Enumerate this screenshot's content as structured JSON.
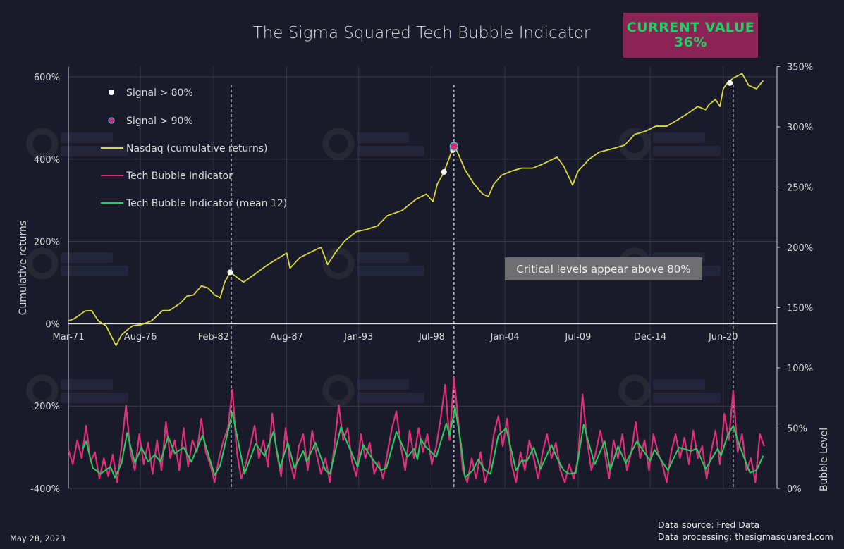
{
  "title": "The Sigma Squared Tech Bubble Indicator",
  "badge": {
    "label": "CURRENT VALUE",
    "value": "36%",
    "bg": "#8b2454",
    "fg": "#1fd065"
  },
  "annotation": "Critical levels appear above 80%",
  "footer": {
    "date": "May 28, 2023",
    "source": "Data source: Fred Data",
    "processing": "Data processing: thesigmasquared.com"
  },
  "watermark": "THE ΣIGMA SQUARED",
  "chart_data": {
    "type": "line",
    "title": "The Sigma Squared Tech Bubble Indicator",
    "ylabel_left": "Cumulative returns",
    "ylabel_right": "Bubble Level",
    "xlim": [
      "1971-03",
      "2024-05"
    ],
    "ylim_left": [
      -400,
      625
    ],
    "ylim_right": [
      0,
      350
    ],
    "grid": true,
    "legend_position": "top-left",
    "x_ticks": [
      "Mar-71",
      "Aug-76",
      "Feb-82",
      "Aug-87",
      "Jan-93",
      "Jul-98",
      "Jan-04",
      "Jul-09",
      "Dec-14",
      "Jun-20"
    ],
    "x_tick_dates": [
      "1971-03",
      "1976-08",
      "1982-02",
      "1987-08",
      "1993-01",
      "1998-07",
      "2004-01",
      "2009-07",
      "2014-12",
      "2020-06"
    ],
    "y_ticks_left": [
      {
        "v": 600,
        "label": "600%"
      },
      {
        "v": 400,
        "label": "400%"
      },
      {
        "v": 200,
        "label": "200%"
      },
      {
        "v": 0,
        "label": "0%"
      },
      {
        "v": -200,
        "label": "-200%"
      },
      {
        "v": -400,
        "label": "-400%"
      }
    ],
    "y_ticks_right": [
      {
        "v": 350,
        "label": "350%"
      },
      {
        "v": 300,
        "label": "300%"
      },
      {
        "v": 250,
        "label": "250%"
      },
      {
        "v": 200,
        "label": "200%"
      },
      {
        "v": 150,
        "label": "150%"
      },
      {
        "v": 100,
        "label": "100%"
      },
      {
        "v": 50,
        "label": "50%"
      },
      {
        "v": 0,
        "label": "0%"
      }
    ],
    "legend": [
      {
        "label": "Signal > 80%",
        "kind": "dot",
        "color": "#ffffff"
      },
      {
        "label": "Signal > 90%",
        "kind": "dot",
        "color": "#d6286e",
        "ring": "#4fc3d9"
      },
      {
        "label": "Nasdaq (cumulative returns)",
        "kind": "line",
        "color": "#d9d93a"
      },
      {
        "label": "Tech Bubble Indicator",
        "kind": "line",
        "color": "#e0307a"
      },
      {
        "label": "Tech Bubble Indicator (mean 12)",
        "kind": "line",
        "color": "#1fcf5f"
      }
    ],
    "series": [
      {
        "name": "Nasdaq (cumulative returns)",
        "axis": "left",
        "color": "#d9d93a",
        "points": [
          [
            "1971-03",
            7
          ],
          [
            "1971-08",
            12
          ],
          [
            "1972-01",
            21
          ],
          [
            "1972-06",
            31
          ],
          [
            "1972-12",
            32
          ],
          [
            "1973-06",
            7
          ],
          [
            "1974-01",
            -5
          ],
          [
            "1974-06",
            -32
          ],
          [
            "1974-10",
            -53
          ],
          [
            "1975-03",
            -27
          ],
          [
            "1975-08",
            -15
          ],
          [
            "1976-01",
            -5
          ],
          [
            "1976-09",
            -2
          ],
          [
            "1977-06",
            7
          ],
          [
            "1978-04",
            32
          ],
          [
            "1978-10",
            32
          ],
          [
            "1979-08",
            50
          ],
          [
            "1980-02",
            67
          ],
          [
            "1980-08",
            70
          ],
          [
            "1981-03",
            92
          ],
          [
            "1981-09",
            87
          ],
          [
            "1982-03",
            70
          ],
          [
            "1982-08",
            63
          ],
          [
            "1982-12",
            101
          ],
          [
            "1983-05",
            125
          ],
          [
            "1983-10",
            115
          ],
          [
            "1984-05",
            101
          ],
          [
            "1985-02",
            118
          ],
          [
            "1985-12",
            138
          ],
          [
            "1986-08",
            152
          ],
          [
            "1987-04",
            165
          ],
          [
            "1987-08",
            172
          ],
          [
            "1987-11",
            135
          ],
          [
            "1988-08",
            161
          ],
          [
            "1989-05",
            173
          ],
          [
            "1990-03",
            186
          ],
          [
            "1990-09",
            144
          ],
          [
            "1991-04",
            173
          ],
          [
            "1992-01",
            203
          ],
          [
            "1992-11",
            224
          ],
          [
            "1993-08",
            229
          ],
          [
            "1994-06",
            238
          ],
          [
            "1995-03",
            263
          ],
          [
            "1996-04",
            275
          ],
          [
            "1997-05",
            303
          ],
          [
            "1998-02",
            315
          ],
          [
            "1998-08",
            297
          ],
          [
            "1998-12",
            340
          ],
          [
            "1999-06",
            369
          ],
          [
            "1999-11",
            405
          ],
          [
            "2000-03",
            434
          ],
          [
            "2000-07",
            412
          ],
          [
            "2001-01",
            374
          ],
          [
            "2001-09",
            340
          ],
          [
            "2002-05",
            315
          ],
          [
            "2002-10",
            309
          ],
          [
            "2003-03",
            340
          ],
          [
            "2003-10",
            361
          ],
          [
            "2004-07",
            371
          ],
          [
            "2005-04",
            378
          ],
          [
            "2006-02",
            378
          ],
          [
            "2006-11",
            388
          ],
          [
            "2007-12",
            405
          ],
          [
            "2008-06",
            383
          ],
          [
            "2008-12",
            349
          ],
          [
            "2009-02",
            337
          ],
          [
            "2009-07",
            371
          ],
          [
            "2010-05",
            400
          ],
          [
            "2011-02",
            417
          ],
          [
            "2012-03",
            426
          ],
          [
            "2013-01",
            434
          ],
          [
            "2013-10",
            460
          ],
          [
            "2014-08",
            468
          ],
          [
            "2015-05",
            480
          ],
          [
            "2016-03",
            480
          ],
          [
            "2016-12",
            494
          ],
          [
            "2017-10",
            511
          ],
          [
            "2018-07",
            528
          ],
          [
            "2019-02",
            520
          ],
          [
            "2019-05",
            532
          ],
          [
            "2019-11",
            545
          ],
          [
            "2020-03",
            528
          ],
          [
            "2020-06",
            571
          ],
          [
            "2020-09",
            583
          ],
          [
            "2021-03",
            597
          ],
          [
            "2021-11",
            608
          ],
          [
            "2022-05",
            579
          ],
          [
            "2022-12",
            571
          ],
          [
            "2023-06",
            591
          ]
        ]
      },
      {
        "name": "Tech Bubble Indicator",
        "axis": "right",
        "color": "#e0307a",
        "start": "1971-03",
        "step_months": 4,
        "values": [
          32,
          20,
          40,
          25,
          52,
          22,
          30,
          8,
          25,
          10,
          28,
          5,
          35,
          69,
          30,
          15,
          45,
          20,
          38,
          12,
          40,
          15,
          55,
          25,
          40,
          15,
          50,
          18,
          40,
          30,
          58,
          30,
          20,
          5,
          25,
          40,
          50,
          82,
          30,
          8,
          20,
          35,
          52,
          25,
          40,
          18,
          62,
          30,
          10,
          50,
          22,
          8,
          35,
          45,
          15,
          48,
          28,
          12,
          25,
          5,
          35,
          69,
          40,
          50,
          22,
          10,
          45,
          25,
          38,
          12,
          22,
          8,
          30,
          50,
          64,
          35,
          15,
          48,
          25,
          50,
          30,
          45,
          20,
          35,
          58,
          86,
          40,
          92,
          55,
          15,
          5,
          25,
          8,
          30,
          5,
          18,
          45,
          60,
          35,
          58,
          20,
          5,
          30,
          15,
          40,
          25,
          8,
          30,
          45,
          25,
          38,
          15,
          5,
          20,
          8,
          25,
          78,
          40,
          15,
          30,
          48,
          30,
          8,
          40,
          25,
          45,
          15,
          30,
          55,
          25,
          40,
          15,
          45,
          30,
          20,
          5,
          30,
          45,
          25,
          42,
          20,
          48,
          25,
          35,
          8,
          30,
          48,
          20,
          62,
          40,
          81,
          30,
          45,
          15,
          25,
          5,
          45,
          35
        ]
      },
      {
        "name": "Tech Bubble Indicator (mean 12)",
        "axis": "right",
        "color": "#1fcf5f",
        "points": [
          [
            "1972-04",
            33
          ],
          [
            "1972-07",
            39
          ],
          [
            "1973-01",
            17
          ],
          [
            "1973-08",
            12
          ],
          [
            "1974-05",
            18
          ],
          [
            "1974-09",
            9
          ],
          [
            "1975-03",
            21
          ],
          [
            "1975-08",
            46
          ],
          [
            "1976-03",
            21
          ],
          [
            "1976-09",
            34
          ],
          [
            "1977-03",
            22
          ],
          [
            "1977-09",
            28
          ],
          [
            "1978-02",
            22
          ],
          [
            "1978-09",
            43
          ],
          [
            "1979-03",
            29
          ],
          [
            "1979-11",
            34
          ],
          [
            "1980-06",
            22
          ],
          [
            "1981-04",
            44
          ],
          [
            "1982-03",
            11
          ],
          [
            "1982-08",
            19
          ],
          [
            "1983-07",
            63
          ],
          [
            "1984-06",
            12
          ],
          [
            "1985-04",
            37
          ],
          [
            "1985-12",
            27
          ],
          [
            "1986-08",
            47
          ],
          [
            "1987-02",
            17
          ],
          [
            "1987-09",
            38
          ],
          [
            "1988-03",
            17
          ],
          [
            "1988-11",
            31
          ],
          [
            "1989-02",
            22
          ],
          [
            "1989-10",
            38
          ],
          [
            "1990-07",
            15
          ],
          [
            "1990-11",
            12
          ],
          [
            "1991-09",
            51
          ],
          [
            "1992-03",
            37
          ],
          [
            "1992-12",
            18
          ],
          [
            "1993-05",
            36
          ],
          [
            "1994-01",
            25
          ],
          [
            "1994-09",
            15
          ],
          [
            "1995-02",
            17
          ],
          [
            "1995-11",
            47
          ],
          [
            "1996-09",
            26
          ],
          [
            "1997-03",
            33
          ],
          [
            "1997-06",
            24
          ],
          [
            "1997-09",
            41
          ],
          [
            "1998-01",
            35
          ],
          [
            "1998-11",
            26
          ],
          [
            "1999-08",
            54
          ],
          [
            "1999-11",
            44
          ],
          [
            "2000-04",
            67
          ],
          [
            "2000-09",
            39
          ],
          [
            "2001-01",
            9
          ],
          [
            "2001-08",
            15
          ],
          [
            "2002-01",
            24
          ],
          [
            "2002-07",
            15
          ],
          [
            "2002-12",
            12
          ],
          [
            "2003-07",
            44
          ],
          [
            "2004-02",
            50
          ],
          [
            "2004-11",
            15
          ],
          [
            "2005-04",
            23
          ],
          [
            "2005-09",
            23
          ],
          [
            "2006-03",
            34
          ],
          [
            "2006-09",
            16
          ],
          [
            "2007-07",
            36
          ],
          [
            "2007-12",
            25
          ],
          [
            "2008-06",
            15
          ],
          [
            "2008-11",
            12
          ],
          [
            "2009-05",
            13
          ],
          [
            "2009-12",
            53
          ],
          [
            "2010-10",
            20
          ],
          [
            "2011-07",
            39
          ],
          [
            "2011-12",
            15
          ],
          [
            "2012-07",
            35
          ],
          [
            "2013-02",
            21
          ],
          [
            "2013-12",
            39
          ],
          [
            "2014-12",
            23
          ],
          [
            "2015-04",
            32
          ],
          [
            "2016-04",
            15
          ],
          [
            "2017-02",
            34
          ],
          [
            "2018-01",
            31
          ],
          [
            "2018-06",
            33
          ],
          [
            "2019-02",
            16
          ],
          [
            "2020-01",
            33
          ],
          [
            "2020-04",
            27
          ],
          [
            "2020-10",
            44
          ],
          [
            "2021-03",
            52
          ],
          [
            "2021-08",
            37
          ],
          [
            "2022-06",
            13
          ],
          [
            "2022-12",
            15
          ],
          [
            "2023-06",
            27
          ]
        ]
      }
    ],
    "signals_80": [
      [
        "1983-05",
        125
      ],
      [
        "1999-06",
        369
      ],
      [
        "2000-02",
        422
      ],
      [
        "2020-12",
        585
      ]
    ],
    "signals_90": [
      [
        "2000-03",
        431
      ]
    ],
    "signal_vlines": [
      "1983-06",
      "2000-03",
      "2021-03"
    ]
  }
}
